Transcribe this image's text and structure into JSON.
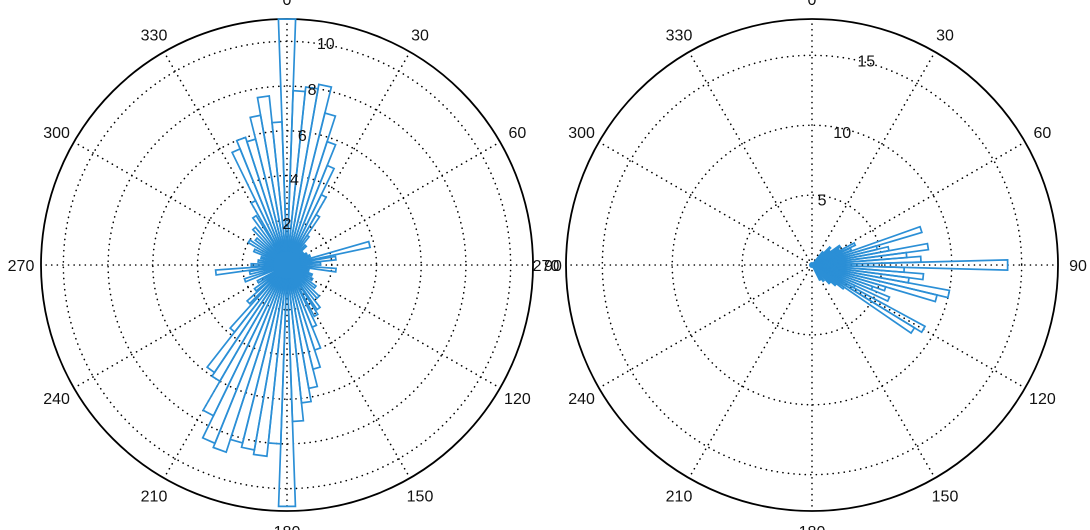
{
  "colors": {
    "bar": "#2b8fd6",
    "axis": "#000000",
    "text": "#111111"
  },
  "chart_data": [
    {
      "type": "polar-histogram",
      "angle_ticks": [
        "0",
        "30",
        "60",
        "90",
        "120",
        "150",
        "180",
        "210",
        "240",
        "270",
        "300",
        "330"
      ],
      "radial_ticks": [
        "2",
        "4",
        "6",
        "8",
        "10"
      ],
      "rmax": 11,
      "bin_width_deg": 4,
      "grid": true,
      "bars": [
        {
          "angle": 0,
          "value": 11.0
        },
        {
          "angle": 4,
          "value": 7.8
        },
        {
          "angle": 8,
          "value": 8.0
        },
        {
          "angle": 12,
          "value": 8.2
        },
        {
          "angle": 16,
          "value": 7.0
        },
        {
          "angle": 20,
          "value": 5.8
        },
        {
          "angle": 24,
          "value": 4.8
        },
        {
          "angle": 28,
          "value": 3.5
        },
        {
          "angle": 32,
          "value": 2.6
        },
        {
          "angle": 36,
          "value": 1.6
        },
        {
          "angle": 44,
          "value": 1.2
        },
        {
          "angle": 52,
          "value": 0.9
        },
        {
          "angle": 60,
          "value": 1.0
        },
        {
          "angle": 68,
          "value": 1.1
        },
        {
          "angle": 76,
          "value": 3.8
        },
        {
          "angle": 82,
          "value": 2.2
        },
        {
          "angle": 88,
          "value": 1.5
        },
        {
          "angle": 96,
          "value": 2.2
        },
        {
          "angle": 104,
          "value": 1.0
        },
        {
          "angle": 112,
          "value": 1.2
        },
        {
          "angle": 120,
          "value": 1.3
        },
        {
          "angle": 128,
          "value": 1.6
        },
        {
          "angle": 136,
          "value": 2.0
        },
        {
          "angle": 144,
          "value": 2.4
        },
        {
          "angle": 150,
          "value": 2.6
        },
        {
          "angle": 156,
          "value": 3.0
        },
        {
          "angle": 160,
          "value": 4.0
        },
        {
          "angle": 164,
          "value": 4.8
        },
        {
          "angle": 168,
          "value": 5.6
        },
        {
          "angle": 172,
          "value": 6.2
        },
        {
          "angle": 176,
          "value": 7.0
        },
        {
          "angle": 180,
          "value": 10.8
        },
        {
          "angle": 184,
          "value": 8.0
        },
        {
          "angle": 188,
          "value": 8.6
        },
        {
          "angle": 192,
          "value": 8.4
        },
        {
          "angle": 196,
          "value": 8.2
        },
        {
          "angle": 200,
          "value": 8.8
        },
        {
          "angle": 204,
          "value": 8.6
        },
        {
          "angle": 208,
          "value": 7.5
        },
        {
          "angle": 212,
          "value": 6.0
        },
        {
          "angle": 216,
          "value": 5.8
        },
        {
          "angle": 220,
          "value": 3.8
        },
        {
          "angle": 226,
          "value": 2.4
        },
        {
          "angle": 232,
          "value": 1.8
        },
        {
          "angle": 240,
          "value": 1.5
        },
        {
          "angle": 250,
          "value": 2.0
        },
        {
          "angle": 258,
          "value": 1.7
        },
        {
          "angle": 264,
          "value": 3.2
        },
        {
          "angle": 270,
          "value": 1.6
        },
        {
          "angle": 278,
          "value": 1.3
        },
        {
          "angle": 286,
          "value": 1.2
        },
        {
          "angle": 294,
          "value": 1.6
        },
        {
          "angle": 302,
          "value": 2.0
        },
        {
          "angle": 310,
          "value": 1.8
        },
        {
          "angle": 318,
          "value": 2.2
        },
        {
          "angle": 326,
          "value": 2.6
        },
        {
          "angle": 332,
          "value": 3.2
        },
        {
          "angle": 336,
          "value": 5.6
        },
        {
          "angle": 340,
          "value": 6.0
        },
        {
          "angle": 344,
          "value": 5.8
        },
        {
          "angle": 348,
          "value": 6.8
        },
        {
          "angle": 352,
          "value": 7.6
        },
        {
          "angle": 356,
          "value": 6.4
        }
      ]
    },
    {
      "type": "polar-histogram",
      "angle_ticks": [
        "0",
        "30",
        "60",
        "90",
        "120",
        "150",
        "180",
        "210",
        "240",
        "270",
        "300",
        "330"
      ],
      "radial_ticks": [
        "5",
        "10",
        "15"
      ],
      "rmax": 17.6,
      "bin_width_deg": 3,
      "grid": true,
      "bars": [
        {
          "angle": 40,
          "value": 1.2
        },
        {
          "angle": 46,
          "value": 1.8
        },
        {
          "angle": 52,
          "value": 1.6
        },
        {
          "angle": 56,
          "value": 2.4
        },
        {
          "angle": 60,
          "value": 2.2
        },
        {
          "angle": 64,
          "value": 3.4
        },
        {
          "angle": 68,
          "value": 3.0
        },
        {
          "angle": 72,
          "value": 8.2
        },
        {
          "angle": 75,
          "value": 4.8
        },
        {
          "angle": 78,
          "value": 5.6
        },
        {
          "angle": 81,
          "value": 8.4
        },
        {
          "angle": 84,
          "value": 6.8
        },
        {
          "angle": 87,
          "value": 7.8
        },
        {
          "angle": 90,
          "value": 14.0
        },
        {
          "angle": 93,
          "value": 6.6
        },
        {
          "angle": 96,
          "value": 8.0
        },
        {
          "angle": 99,
          "value": 7.0
        },
        {
          "angle": 102,
          "value": 10.0
        },
        {
          "angle": 105,
          "value": 9.2
        },
        {
          "angle": 108,
          "value": 5.5
        },
        {
          "angle": 111,
          "value": 4.6
        },
        {
          "angle": 114,
          "value": 6.0
        },
        {
          "angle": 117,
          "value": 3.4
        },
        {
          "angle": 120,
          "value": 9.2
        },
        {
          "angle": 123,
          "value": 8.6
        },
        {
          "angle": 126,
          "value": 2.8
        },
        {
          "angle": 130,
          "value": 2.2
        },
        {
          "angle": 136,
          "value": 1.8
        },
        {
          "angle": 144,
          "value": 1.4
        },
        {
          "angle": 152,
          "value": 1.2
        }
      ]
    }
  ]
}
